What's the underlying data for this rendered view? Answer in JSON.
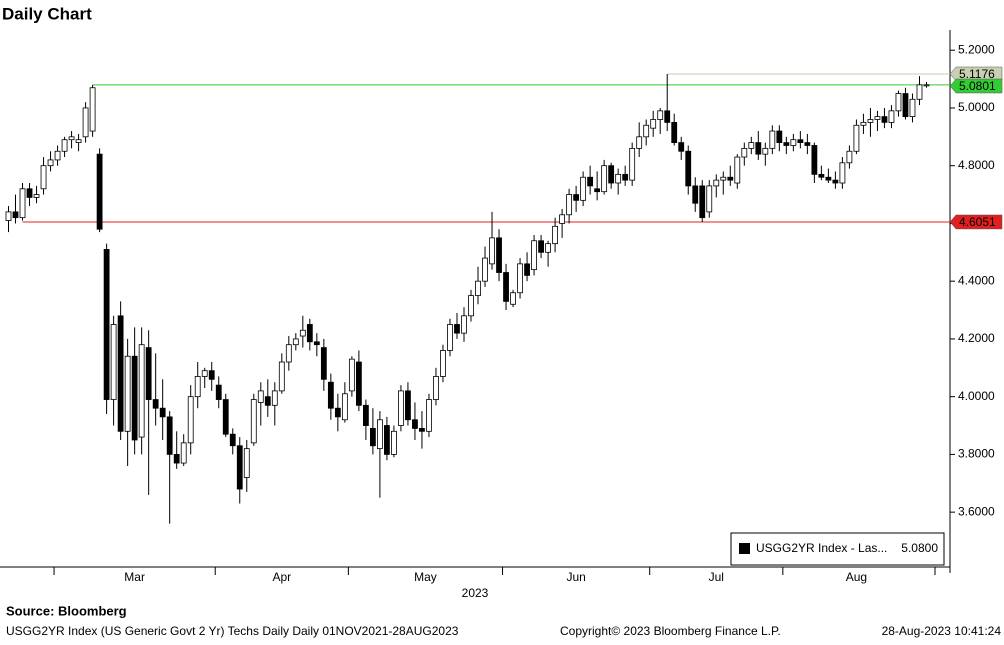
{
  "chart_data": {
    "type": "candlestick",
    "title": "Daily Chart",
    "categories": [
      null,
      null,
      null,
      null,
      null,
      null,
      null,
      "Mar",
      null,
      null,
      null,
      null,
      null,
      null,
      null,
      null,
      null,
      null,
      null,
      null,
      null,
      null,
      null,
      null,
      null,
      null,
      null,
      null,
      null,
      null,
      "Apr",
      null,
      null,
      null,
      null,
      null,
      null,
      null,
      null,
      null,
      null,
      null,
      null,
      null,
      null,
      null,
      null,
      null,
      null,
      "May",
      null,
      null,
      null,
      null,
      null,
      null,
      null,
      null,
      null,
      null,
      null,
      null,
      null,
      null,
      null,
      null,
      null,
      null,
      null,
      null,
      null,
      "Jun",
      null,
      null,
      null,
      null,
      null,
      null,
      null,
      null,
      null,
      null,
      null,
      null,
      null,
      null,
      null,
      null,
      null,
      null,
      null,
      null,
      "Jul",
      null,
      null,
      null,
      null,
      null,
      null,
      null,
      null,
      null,
      null,
      null,
      null,
      null,
      null,
      null,
      null,
      null,
      null,
      "Aug",
      null,
      null,
      null,
      null,
      null,
      null,
      null,
      null,
      null,
      null,
      null,
      null,
      null,
      null,
      null,
      null,
      null,
      null,
      null,
      null
    ],
    "open": [
      4.61,
      4.64,
      4.62,
      4.72,
      4.69,
      4.72,
      4.8,
      4.82,
      4.85,
      4.89,
      4.88,
      4.9,
      4.92,
      4.84,
      4.51,
      3.99,
      4.28,
      3.88,
      4.14,
      3.86,
      4.17,
      3.99,
      3.96,
      3.93,
      3.8,
      3.77,
      3.84,
      4.0,
      4.07,
      4.09,
      4.04,
      3.99,
      3.87,
      3.83,
      3.72,
      3.84,
      3.98,
      4.0,
      3.97,
      4.02,
      4.12,
      4.18,
      4.21,
      4.25,
      4.19,
      4.17,
      4.05,
      3.96,
      3.92,
      4.02,
      4.12,
      3.97,
      3.89,
      3.82,
      3.9,
      3.8,
      3.9,
      4.02,
      3.92,
      3.89,
      3.88,
      3.99,
      4.07,
      4.16,
      4.25,
      4.22,
      4.28,
      4.35,
      4.4,
      4.46,
      4.55,
      4.43,
      4.32,
      4.36,
      4.46,
      4.44,
      4.54,
      4.5,
      4.53,
      4.6,
      4.63,
      4.7,
      4.68,
      4.76,
      4.72,
      4.71,
      4.8,
      4.74,
      4.77,
      4.75,
      4.86,
      4.9,
      4.93,
      4.96,
      4.99,
      4.95,
      4.88,
      4.85,
      4.73,
      4.73,
      4.64,
      4.73,
      4.75,
      4.76,
      4.74,
      4.83,
      4.86,
      4.88,
      4.84,
      4.86,
      4.92,
      4.88,
      4.87,
      4.89,
      4.88,
      4.87,
      4.77,
      4.76,
      4.75,
      4.74,
      4.81,
      4.85,
      4.94,
      4.95,
      4.96,
      4.97,
      4.95,
      4.99,
      5.05,
      4.97,
      5.03,
      5.08
    ],
    "high": [
      4.66,
      4.7,
      4.74,
      4.74,
      4.73,
      4.83,
      4.85,
      4.87,
      4.9,
      4.92,
      4.91,
      5.02,
      5.08,
      4.86,
      4.53,
      4.28,
      4.33,
      4.2,
      4.24,
      4.24,
      4.23,
      4.15,
      4.06,
      3.95,
      3.88,
      3.87,
      4.04,
      4.12,
      4.1,
      4.12,
      4.07,
      4.01,
      3.89,
      3.86,
      3.85,
      4.01,
      4.05,
      4.06,
      4.05,
      4.15,
      4.21,
      4.22,
      4.28,
      4.27,
      4.22,
      4.2,
      4.08,
      4.01,
      4.05,
      4.14,
      4.16,
      3.99,
      3.96,
      3.95,
      3.93,
      3.9,
      4.04,
      4.05,
      3.98,
      3.95,
      4.01,
      4.1,
      4.18,
      4.27,
      4.29,
      4.31,
      4.37,
      4.45,
      4.52,
      4.64,
      4.58,
      4.46,
      4.37,
      4.48,
      4.5,
      4.56,
      4.56,
      4.54,
      4.62,
      4.65,
      4.72,
      4.73,
      4.78,
      4.8,
      4.78,
      4.82,
      4.81,
      4.79,
      4.8,
      4.88,
      4.95,
      4.96,
      4.99,
      5.0,
      5.1176,
      4.98,
      4.9,
      4.87,
      4.76,
      4.75,
      4.75,
      4.77,
      4.78,
      4.8,
      4.84,
      4.88,
      4.9,
      4.92,
      4.88,
      4.94,
      4.94,
      4.9,
      4.91,
      4.92,
      4.91,
      4.88,
      4.8,
      4.79,
      4.78,
      4.83,
      4.87,
      4.96,
      4.98,
      5.0,
      4.99,
      5.0,
      5.01,
      5.06,
      5.07,
      5.05,
      5.11,
      5.09
    ],
    "low": [
      4.57,
      4.6,
      4.61,
      4.66,
      4.67,
      4.7,
      4.78,
      4.8,
      4.83,
      4.86,
      4.85,
      4.88,
      4.9,
      4.57,
      3.94,
      3.9,
      3.85,
      3.76,
      3.8,
      3.8,
      3.66,
      3.9,
      3.85,
      3.56,
      3.75,
      3.76,
      3.8,
      3.96,
      4.03,
      4.02,
      3.96,
      3.86,
      3.8,
      3.63,
      3.67,
      3.83,
      3.9,
      3.93,
      3.9,
      4.01,
      4.09,
      4.16,
      4.17,
      4.16,
      4.14,
      4.02,
      3.92,
      3.88,
      3.91,
      4.0,
      3.95,
      3.85,
      3.8,
      3.65,
      3.78,
      3.79,
      3.88,
      3.9,
      3.85,
      3.82,
      3.86,
      3.97,
      4.05,
      4.14,
      4.2,
      4.19,
      4.26,
      4.32,
      4.38,
      4.44,
      4.4,
      4.3,
      4.31,
      4.34,
      4.4,
      4.42,
      4.48,
      4.45,
      4.5,
      4.55,
      4.6,
      4.64,
      4.66,
      4.7,
      4.68,
      4.7,
      4.72,
      4.7,
      4.73,
      4.73,
      4.83,
      4.87,
      4.9,
      4.91,
      4.92,
      4.87,
      4.82,
      4.7,
      4.64,
      4.6051,
      4.62,
      4.69,
      4.7,
      4.73,
      4.72,
      4.8,
      4.84,
      4.82,
      4.8,
      4.84,
      4.85,
      4.84,
      4.85,
      4.86,
      4.84,
      4.74,
      4.75,
      4.74,
      4.72,
      4.72,
      4.79,
      4.84,
      4.91,
      4.9,
      4.92,
      4.93,
      4.93,
      4.97,
      4.96,
      4.95,
      5.01,
      5.07
    ],
    "close": [
      4.64,
      4.62,
      4.72,
      4.69,
      4.7,
      4.8,
      4.82,
      4.85,
      4.89,
      4.9,
      4.89,
      5.0,
      5.07,
      4.58,
      3.99,
      4.25,
      3.88,
      4.14,
      3.85,
      4.18,
      3.99,
      3.96,
      3.93,
      3.8,
      3.77,
      3.84,
      4.0,
      4.07,
      4.09,
      4.06,
      3.99,
      3.87,
      3.83,
      3.68,
      3.82,
      3.99,
      4.02,
      3.97,
      4.02,
      4.12,
      4.18,
      4.2,
      4.23,
      4.19,
      4.18,
      4.06,
      3.96,
      3.93,
      4.01,
      4.13,
      3.97,
      3.9,
      3.83,
      3.92,
      3.8,
      3.88,
      4.02,
      3.92,
      3.89,
      3.88,
      3.99,
      4.07,
      4.16,
      4.25,
      4.22,
      4.28,
      4.35,
      4.4,
      4.48,
      4.55,
      4.43,
      4.33,
      4.36,
      4.46,
      4.42,
      4.54,
      4.5,
      4.53,
      4.59,
      4.63,
      4.7,
      4.68,
      4.76,
      4.73,
      4.71,
      4.8,
      4.74,
      4.77,
      4.75,
      4.86,
      4.9,
      4.94,
      4.96,
      4.99,
      4.95,
      4.88,
      4.85,
      4.73,
      4.67,
      4.62,
      4.73,
      4.75,
      4.76,
      4.75,
      4.83,
      4.86,
      4.88,
      4.84,
      4.86,
      4.92,
      4.88,
      4.87,
      4.89,
      4.88,
      4.87,
      4.77,
      4.76,
      4.75,
      4.74,
      4.81,
      4.85,
      4.94,
      4.95,
      4.96,
      4.97,
      4.95,
      4.99,
      5.05,
      4.97,
      5.03,
      5.08,
      5.08
    ],
    "year_label": "2023",
    "ylim": [
      3.41,
      5.27
    ],
    "yticks": [
      {
        "value": 3.6,
        "label": "3.6000"
      },
      {
        "value": 3.8,
        "label": "3.8000"
      },
      {
        "value": 4.0,
        "label": "4.0000"
      },
      {
        "value": 4.2,
        "label": "4.2000"
      },
      {
        "value": 4.4,
        "label": "4.4000"
      },
      {
        "value": 4.6,
        "label": "4.6000"
      },
      {
        "value": 4.8,
        "label": "4.8000"
      },
      {
        "value": 5.0,
        "label": "5.0000"
      },
      {
        "value": 5.2,
        "label": "5.2000"
      }
    ],
    "reference_lines": [
      {
        "value": 5.1176,
        "label": "5.1176",
        "color": "#c9cfb0"
      },
      {
        "value": 5.0801,
        "label": "5.0801",
        "color": "#33cc33"
      },
      {
        "value": 4.6051,
        "label": "4.6051",
        "color": "#e02020"
      }
    ],
    "legend": {
      "label": "USGG2YR Index - Las...",
      "value_label": "5.0800"
    }
  },
  "footer": {
    "source": "Source: Bloomberg",
    "description": "USGG2YR Index (US Generic Govt 2 Yr) Techs Daily  Daily 01NOV2021-28AUG2023",
    "copyright": "Copyright© 2023 Bloomberg Finance L.P.",
    "timestamp": "28-Aug-2023 10:41:24"
  }
}
